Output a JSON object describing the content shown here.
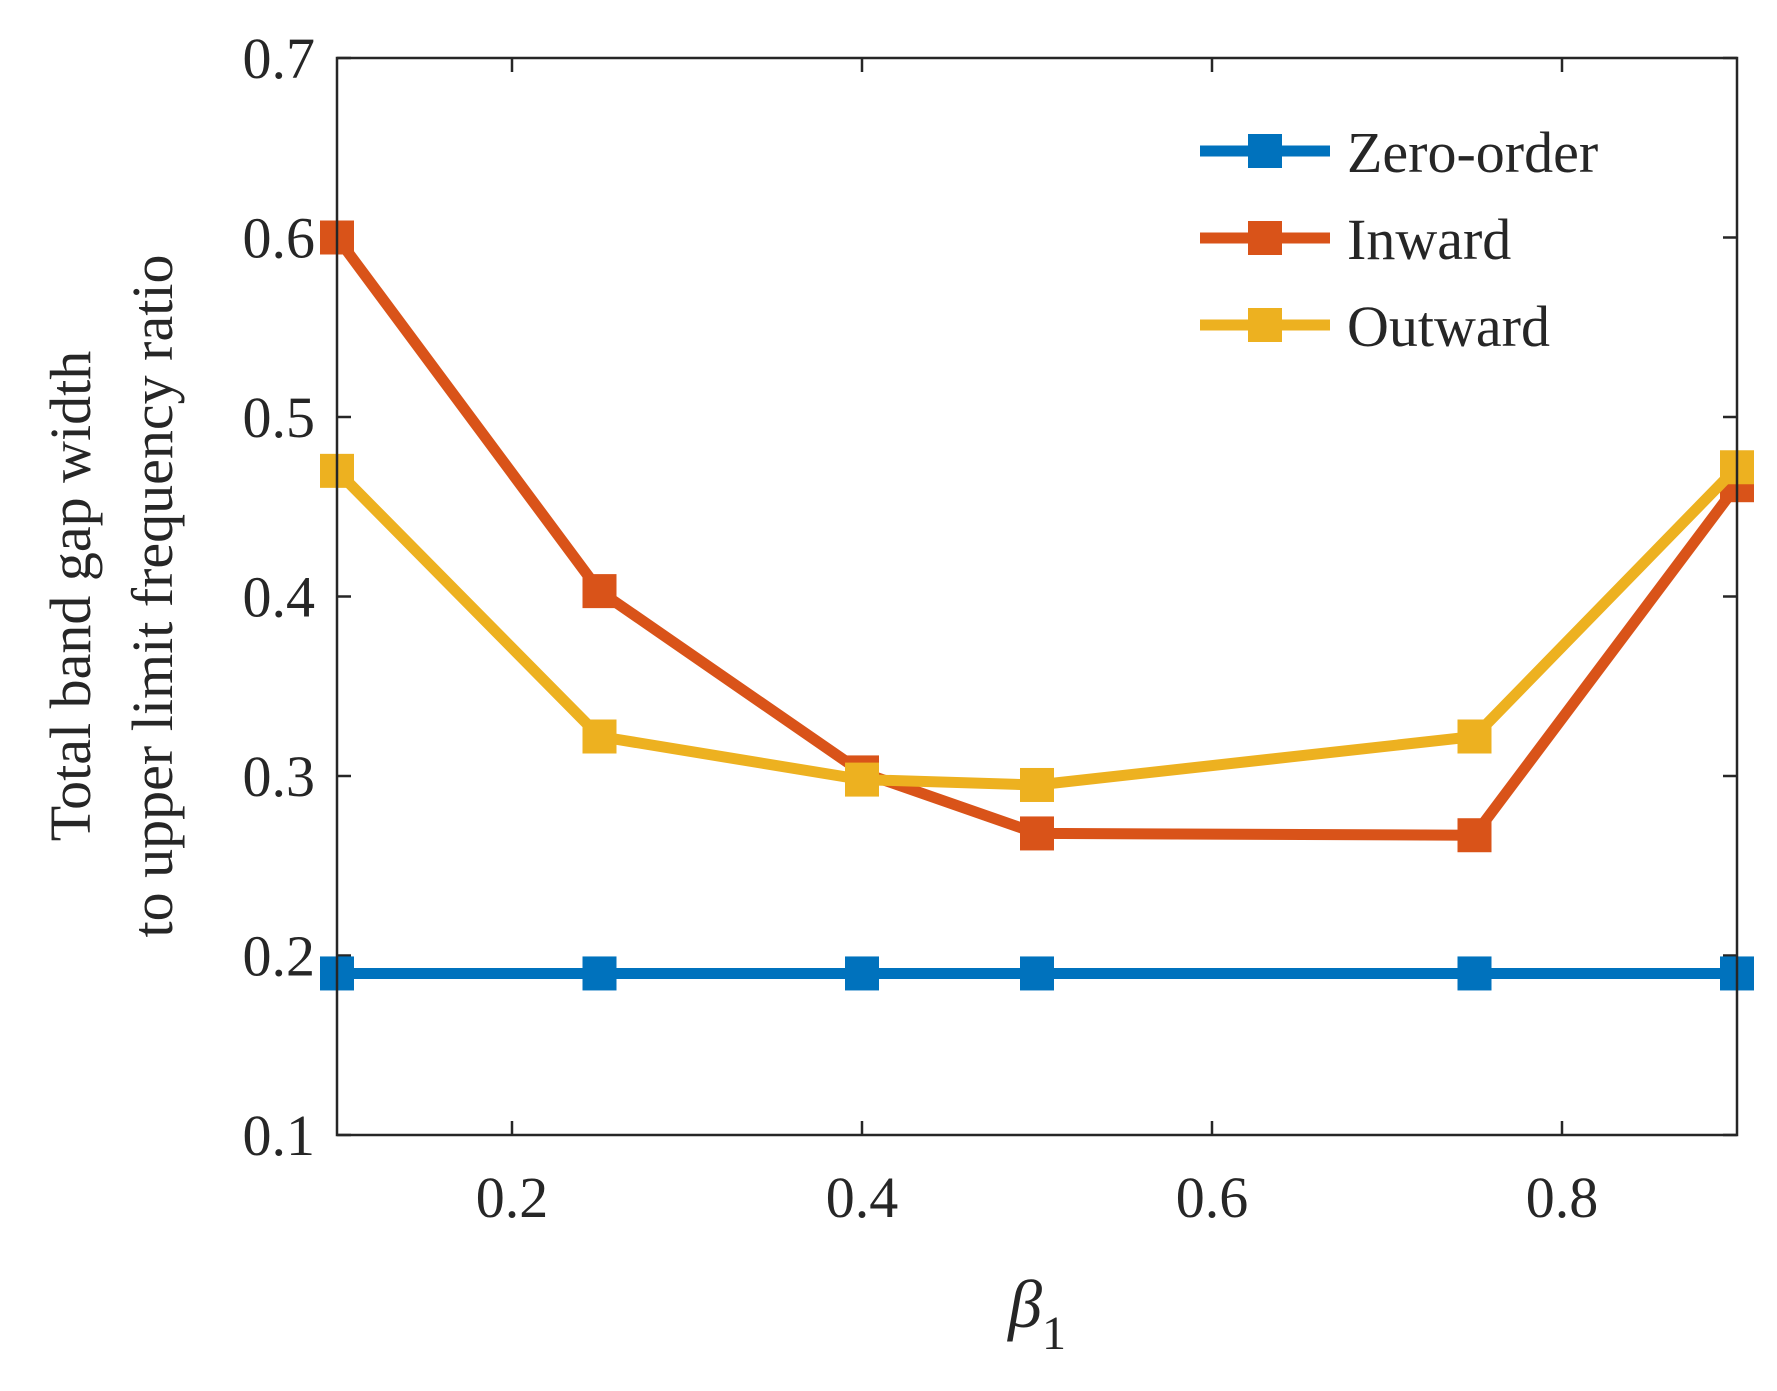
{
  "chart_data": {
    "type": "line",
    "title": "",
    "xlabel": "β",
    "xlabel_subscript": "1",
    "ylabel_lines": [
      "Total band gap width",
      "to upper limit frequency ratio"
    ],
    "xlim": [
      0.1,
      0.9
    ],
    "ylim": [
      0.1,
      0.7
    ],
    "xticks": [
      0.2,
      0.4,
      0.6,
      0.8
    ],
    "xtick_labels": [
      "0.2",
      "0.4",
      "0.6",
      "0.8"
    ],
    "yticks": [
      0.1,
      0.2,
      0.3,
      0.4,
      0.5,
      0.6,
      0.7
    ],
    "ytick_labels": [
      "0.1",
      "0.2",
      "0.3",
      "0.4",
      "0.5",
      "0.6",
      "0.7"
    ],
    "grid": false,
    "legend_position": "top-right",
    "x": [
      0.1,
      0.25,
      0.4,
      0.5,
      0.75,
      0.9
    ],
    "series": [
      {
        "name": "Zero-order",
        "color": "#0072BD",
        "values": [
          0.19,
          0.19,
          0.19,
          0.19,
          0.19,
          0.19
        ]
      },
      {
        "name": "Inward",
        "color": "#D95319",
        "values": [
          0.6,
          0.403,
          0.302,
          0.268,
          0.267,
          0.462
        ]
      },
      {
        "name": "Outward",
        "color": "#EDB120",
        "values": [
          0.47,
          0.322,
          0.298,
          0.295,
          0.322,
          0.472
        ]
      }
    ]
  }
}
